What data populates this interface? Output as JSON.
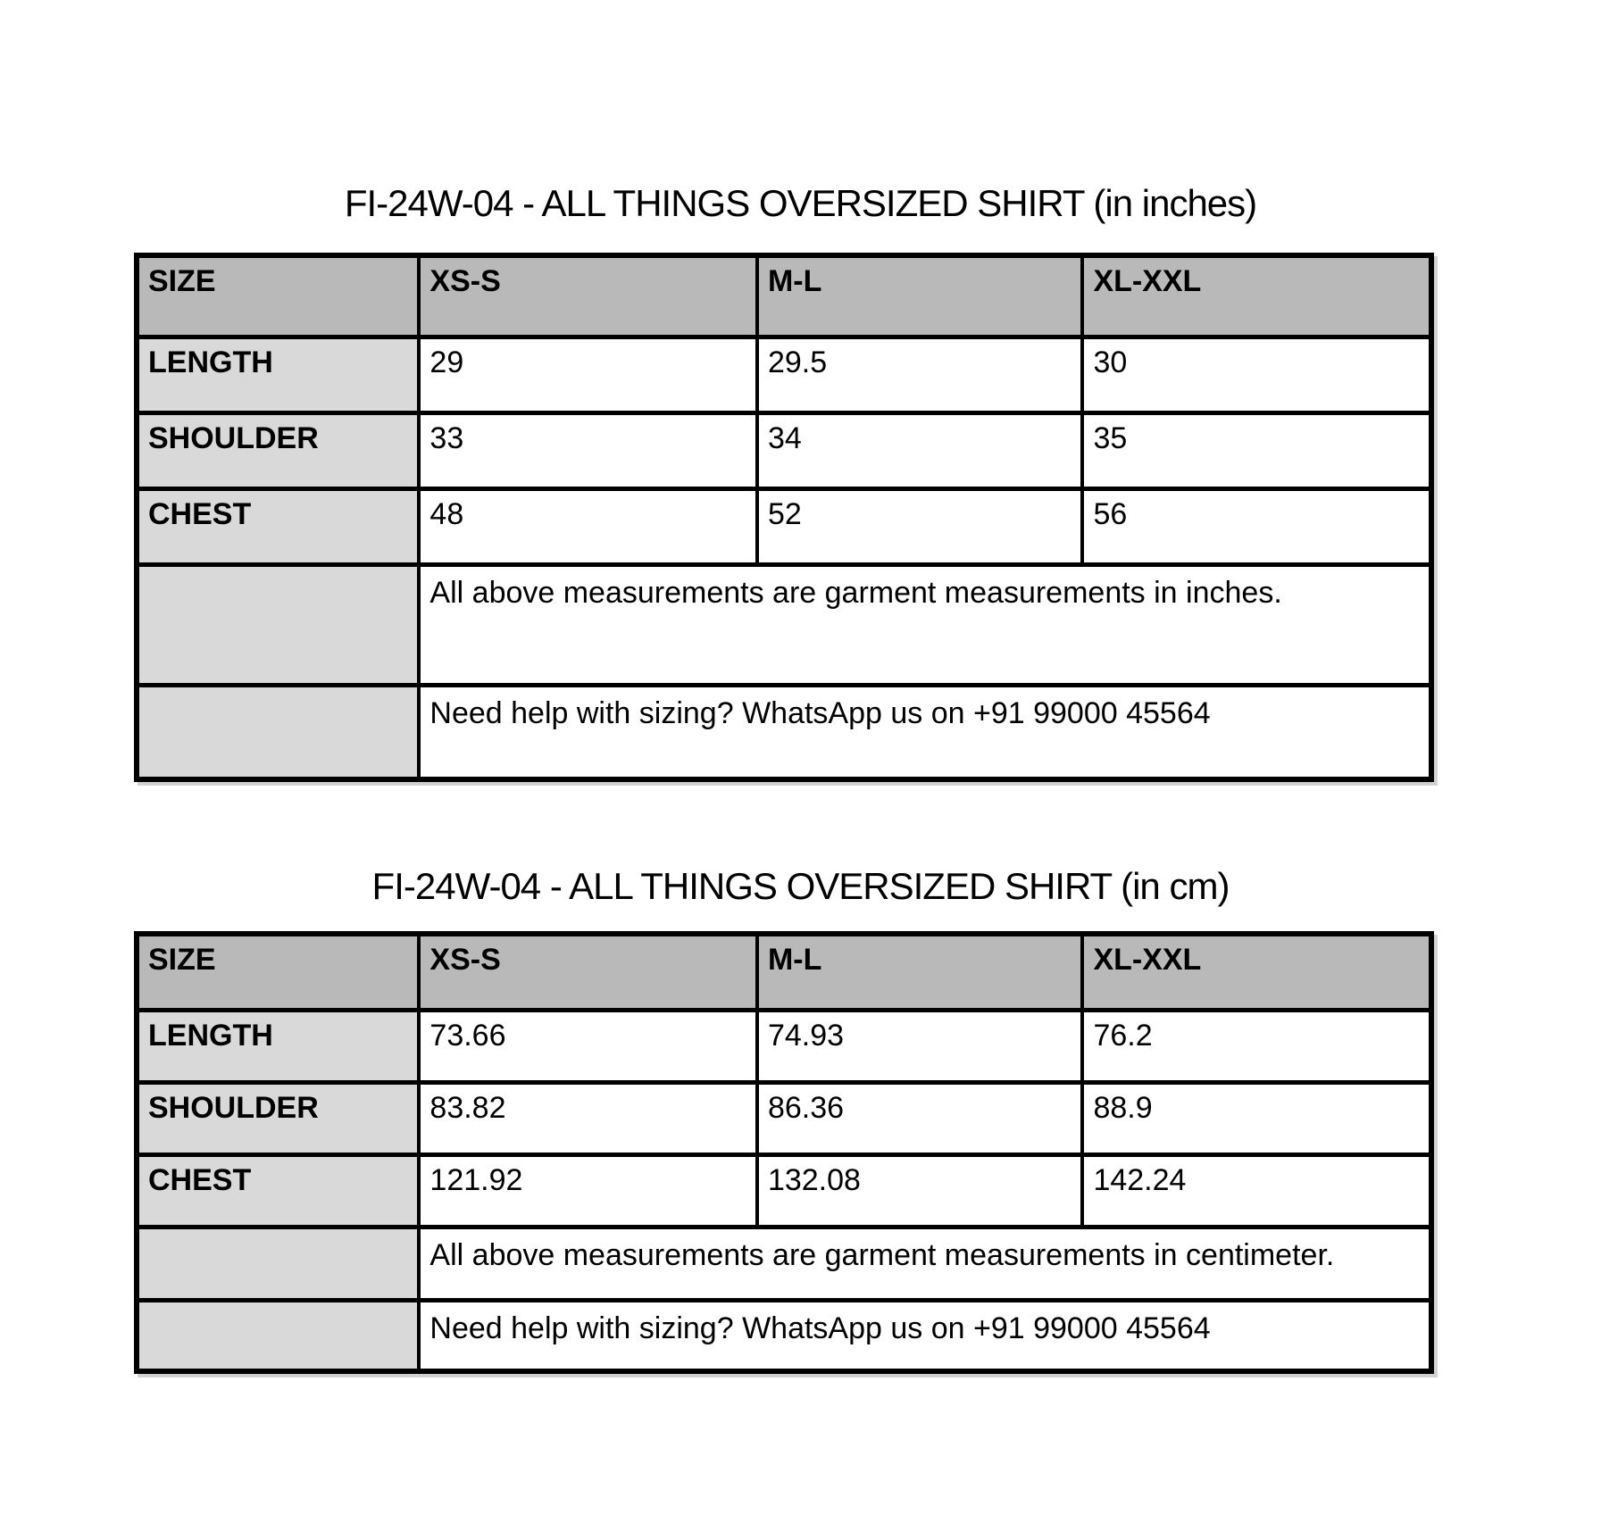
{
  "colors": {
    "header_bg": "#b9b9b9",
    "label_bg": "#d9d9d9",
    "cell_bg": "#ffffff",
    "border": "#000000",
    "text": "#000000"
  },
  "tables": [
    {
      "title": "FI-24W-04 - ALL THINGS OVERSIZED SHIRT (in inches)",
      "columns": [
        "SIZE",
        "XS-S",
        "M-L",
        "XL-XXL"
      ],
      "rows": [
        {
          "label": "LENGTH",
          "values": [
            "29",
            "29.5",
            "30"
          ]
        },
        {
          "label": "SHOULDER",
          "values": [
            "33",
            "34",
            "35"
          ]
        },
        {
          "label": "CHEST",
          "values": [
            "48",
            "52",
            "56"
          ]
        }
      ],
      "notes": [
        "All above measurements are garment measurements in inches.",
        "Need help with sizing? WhatsApp us on +91 99000 45564"
      ]
    },
    {
      "title": "FI-24W-04 - ALL THINGS OVERSIZED SHIRT (in cm)",
      "columns": [
        "SIZE",
        "XS-S",
        "M-L",
        "XL-XXL"
      ],
      "rows": [
        {
          "label": "LENGTH",
          "values": [
            "73.66",
            "74.93",
            "76.2"
          ]
        },
        {
          "label": "SHOULDER",
          "values": [
            "83.82",
            "86.36",
            "88.9"
          ]
        },
        {
          "label": "CHEST",
          "values": [
            "121.92",
            "132.08",
            "142.24"
          ]
        }
      ],
      "notes": [
        "All above measurements are garment measurements in centimeter.",
        "Need help with sizing? WhatsApp us on +91 99000 45564"
      ]
    }
  ]
}
